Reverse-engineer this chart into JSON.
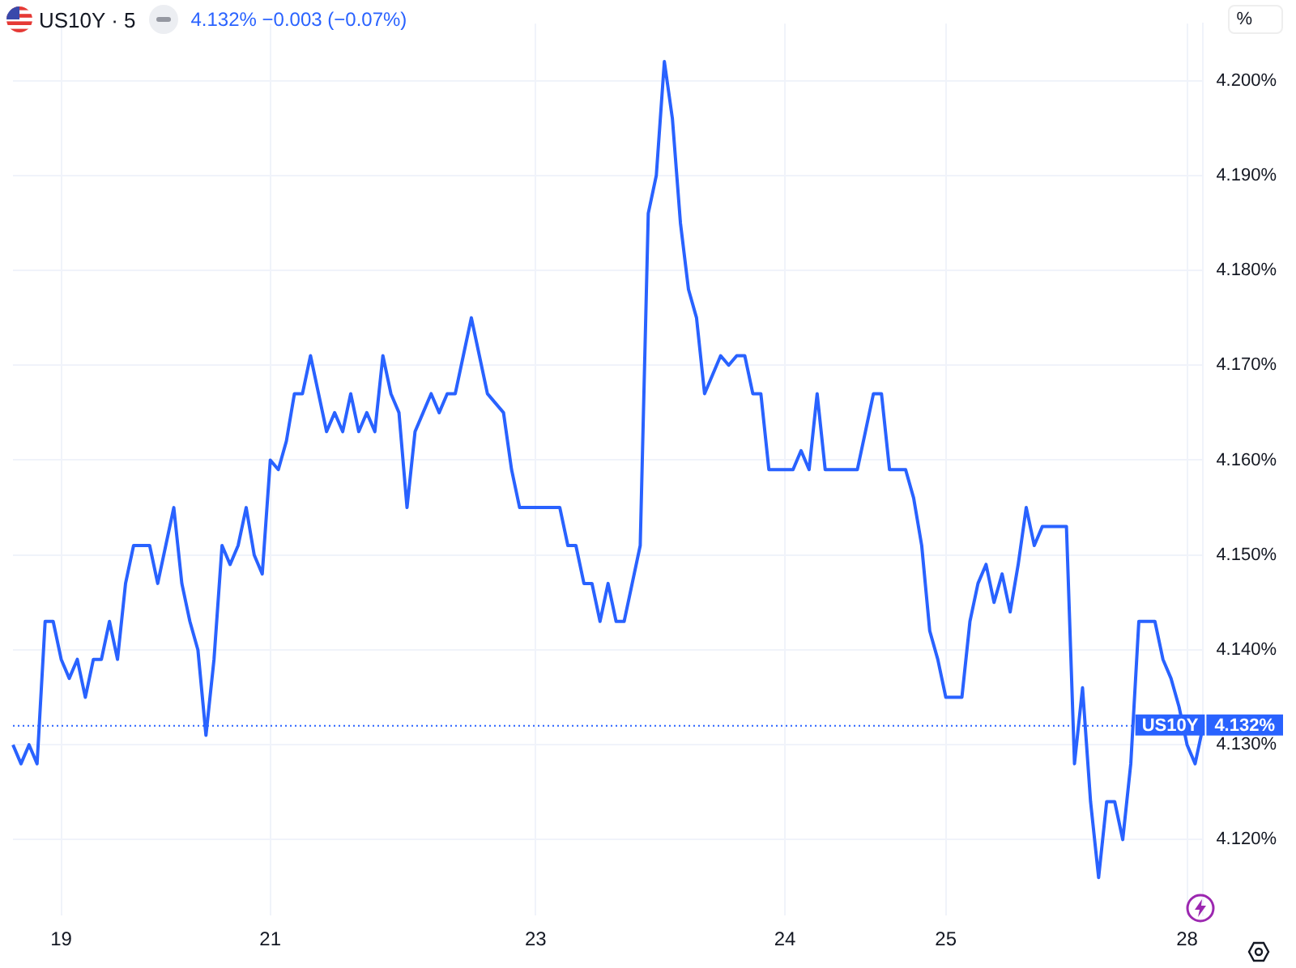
{
  "chart_data": {
    "type": "line",
    "title": "US10Y · 5",
    "subtitle": "4.132%  −0.003 (−0.07%)",
    "ylabel": "%",
    "categories": [
      null,
      null,
      null,
      null,
      null,
      null,
      "19",
      null,
      null,
      null,
      null,
      null,
      null,
      null,
      null,
      null,
      null,
      null,
      null,
      null,
      null,
      null,
      null,
      null,
      null,
      null,
      null,
      null,
      null,
      null,
      null,
      null,
      "21",
      null,
      null,
      null,
      null,
      null,
      null,
      null,
      null,
      null,
      null,
      null,
      null,
      null,
      null,
      null,
      null,
      null,
      null,
      null,
      null,
      null,
      null,
      null,
      null,
      null,
      null,
      null,
      null,
      null,
      null,
      null,
      null,
      "23",
      null,
      null,
      null,
      null,
      null,
      null,
      null,
      null,
      null,
      null,
      null,
      null,
      null,
      null,
      null,
      null,
      null,
      null,
      null,
      null,
      null,
      null,
      null,
      null,
      null,
      null,
      null,
      null,
      null,
      null,
      "24",
      null,
      null,
      null,
      null,
      null,
      null,
      null,
      null,
      null,
      null,
      null,
      null,
      null,
      null,
      null,
      null,
      null,
      null,
      null,
      "25",
      null,
      null,
      null,
      null,
      null,
      null,
      null,
      null,
      null,
      null,
      null,
      null,
      null,
      null,
      null,
      null,
      null,
      null,
      null,
      null,
      null,
      null,
      null,
      null,
      null,
      null,
      null,
      null,
      null,
      "28",
      null,
      null
    ],
    "series": [
      {
        "color": "#2962ff",
        "values": [
          4.13,
          4.128,
          4.13,
          4.128,
          4.143,
          4.143,
          4.139,
          4.137,
          4.139,
          4.135,
          4.139,
          4.139,
          4.143,
          4.139,
          4.147,
          4.151,
          4.151,
          4.151,
          4.147,
          4.151,
          4.155,
          4.147,
          4.143,
          4.14,
          4.131,
          4.139,
          4.151,
          4.149,
          4.151,
          4.155,
          4.15,
          4.148,
          4.16,
          4.159,
          4.162,
          4.167,
          4.167,
          4.171,
          4.167,
          4.163,
          4.165,
          4.163,
          4.167,
          4.163,
          4.165,
          4.163,
          4.171,
          4.167,
          4.165,
          4.155,
          4.163,
          4.165,
          4.167,
          4.165,
          4.167,
          4.167,
          4.171,
          4.175,
          4.171,
          4.167,
          4.166,
          4.165,
          4.159,
          4.155,
          4.155,
          4.155,
          4.155,
          4.155,
          4.155,
          4.151,
          4.151,
          4.147,
          4.147,
          4.143,
          4.147,
          4.143,
          4.143,
          4.147,
          4.151,
          4.186,
          4.19,
          4.202,
          4.196,
          4.185,
          4.178,
          4.175,
          4.167,
          4.169,
          4.171,
          4.17,
          4.171,
          4.171,
          4.167,
          4.167,
          4.159,
          4.159,
          4.159,
          4.159,
          4.161,
          4.159,
          4.167,
          4.159,
          4.159,
          4.159,
          4.159,
          4.159,
          4.163,
          4.167,
          4.167,
          4.159,
          4.159,
          4.159,
          4.156,
          4.151,
          4.142,
          4.139,
          4.135,
          4.135,
          4.135,
          4.143,
          4.147,
          4.149,
          4.145,
          4.148,
          4.144,
          4.149,
          4.155,
          4.151,
          4.153,
          4.153,
          4.153,
          4.153,
          4.128,
          4.136,
          4.124,
          4.116,
          4.124,
          4.124,
          4.12,
          4.128,
          4.143,
          4.143,
          4.143,
          4.139,
          4.137,
          4.134,
          4.13,
          4.128,
          4.132
        ]
      }
    ],
    "ylim": [
      4.112,
      4.206
    ],
    "yticks": [
      {
        "value": 4.12,
        "label": "4.120%"
      },
      {
        "value": 4.13,
        "label": "4.130%"
      },
      {
        "value": 4.14,
        "label": "4.140%"
      },
      {
        "value": 4.15,
        "label": "4.150%"
      },
      {
        "value": 4.16,
        "label": "4.160%"
      },
      {
        "value": 4.17,
        "label": "4.170%"
      },
      {
        "value": 4.18,
        "label": "4.180%"
      },
      {
        "value": 4.19,
        "label": "4.190%"
      },
      {
        "value": 4.2,
        "label": "4.200%"
      }
    ],
    "grid": true,
    "marker": "none",
    "ref_lines": [
      {
        "axis": "y",
        "value": 4.132,
        "label": "US10Y",
        "color": "#2962ff",
        "line_style": "dotted"
      }
    ],
    "annotations": [
      "4.132%"
    ]
  }
}
